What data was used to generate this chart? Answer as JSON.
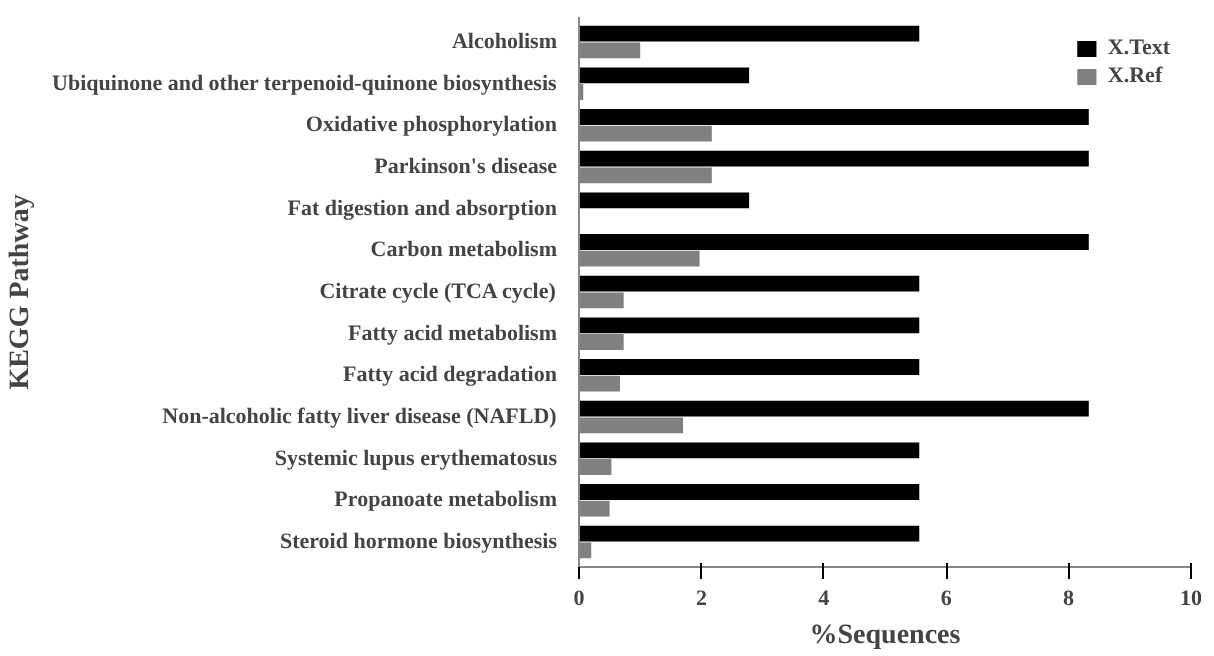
{
  "chart_data": {
    "type": "bar",
    "orientation": "horizontal",
    "xlabel": "%Sequences",
    "ylabel": "KEGG Pathway",
    "categories": [
      "Alcoholism",
      "Ubiquinone and other terpenoid-quinone biosynthesis",
      "Oxidative phosphorylation",
      "Parkinson's disease",
      "Fat digestion and absorption",
      "Carbon metabolism",
      "Citrate cycle (TCA cycle)",
      "Fatty acid metabolism",
      "Fatty acid degradation",
      "Non-alcoholic fatty liver disease (NAFLD)",
      "Systemic lupus erythematosus",
      "Propanoate metabolism",
      "Steroid hormone biosynthesis"
    ],
    "series": [
      {
        "name": "X.Text",
        "color": "#000000",
        "values": [
          5.56,
          2.78,
          8.33,
          8.33,
          2.78,
          8.33,
          5.56,
          5.56,
          5.56,
          8.33,
          5.56,
          5.56,
          5.56
        ]
      },
      {
        "name": "X.Ref",
        "color": "#808080",
        "values": [
          1.0,
          0.07,
          2.17,
          2.17,
          0,
          1.97,
          0.73,
          0.73,
          0.67,
          1.7,
          0.53,
          0.5,
          0.2
        ]
      }
    ],
    "xlim": [
      0,
      10
    ],
    "xticks": [
      0,
      2,
      4,
      6,
      8,
      10
    ],
    "grid": false,
    "legend": "top right"
  }
}
